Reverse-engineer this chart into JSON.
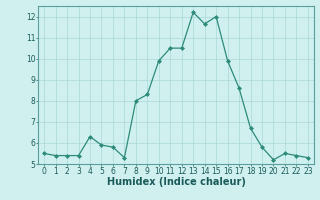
{
  "x": [
    0,
    1,
    2,
    3,
    4,
    5,
    6,
    7,
    8,
    9,
    10,
    11,
    12,
    13,
    14,
    15,
    16,
    17,
    18,
    19,
    20,
    21,
    22,
    23
  ],
  "y": [
    5.5,
    5.4,
    5.4,
    5.4,
    6.3,
    5.9,
    5.8,
    5.3,
    8.0,
    8.3,
    9.9,
    10.5,
    10.5,
    12.2,
    11.65,
    12.0,
    9.9,
    8.6,
    6.7,
    5.8,
    5.2,
    5.5,
    5.4,
    5.3
  ],
  "xlabel": "Humidex (Indice chaleur)",
  "ylim": [
    5,
    12.5
  ],
  "yticks": [
    5,
    6,
    7,
    8,
    9,
    10,
    11,
    12
  ],
  "xticks": [
    0,
    1,
    2,
    3,
    4,
    5,
    6,
    7,
    8,
    9,
    10,
    11,
    12,
    13,
    14,
    15,
    16,
    17,
    18,
    19,
    20,
    21,
    22,
    23
  ],
  "line_color": "#2d8b7a",
  "marker": "D",
  "marker_size": 2.0,
  "bg_plot": "#cff0ee",
  "bg_xaxis": "#5a9ea0",
  "grid_color": "#aad8d8",
  "tick_fontsize": 5.5,
  "xlabel_fontsize": 7.0
}
